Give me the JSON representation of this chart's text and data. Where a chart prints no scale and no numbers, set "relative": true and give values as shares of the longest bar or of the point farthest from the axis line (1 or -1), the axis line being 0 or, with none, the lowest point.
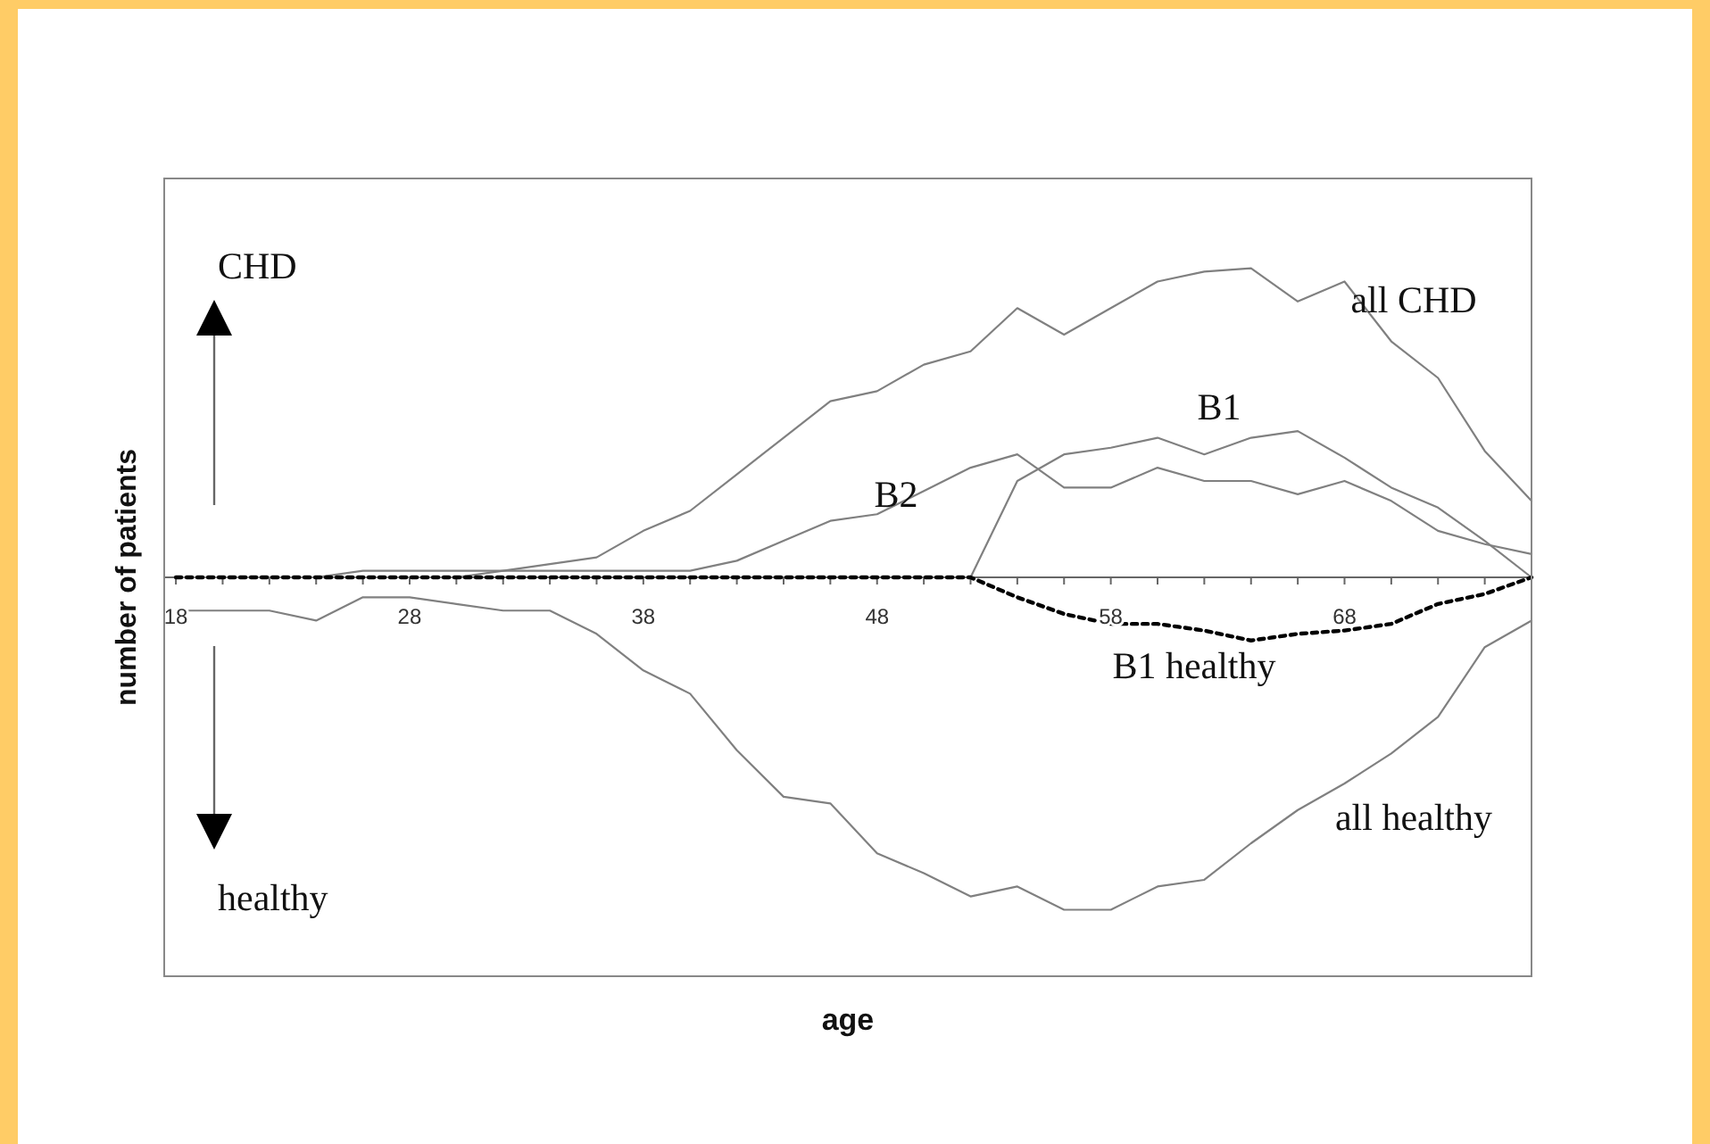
{
  "chart_data": {
    "type": "line",
    "relative": true,
    "xlabel": "age",
    "ylabel": "number of patients",
    "annotations": [
      "CHD",
      "healthy"
    ],
    "x": [
      18,
      20,
      22,
      24,
      26,
      28,
      30,
      32,
      34,
      36,
      38,
      40,
      42,
      44,
      46,
      48,
      50,
      52,
      54,
      56,
      58,
      60,
      62,
      64,
      66,
      68,
      70,
      72,
      74,
      76
    ],
    "xlim": [
      17.5,
      76
    ],
    "xticks": [
      18,
      {
        "value": 20,
        "label": null
      },
      {
        "value": 22,
        "label": null
      },
      {
        "value": 24,
        "label": null
      },
      {
        "value": 26,
        "label": null
      },
      28,
      {
        "value": 30,
        "label": null
      },
      {
        "value": 32,
        "label": null
      },
      {
        "value": 34,
        "label": null
      },
      {
        "value": 36,
        "label": null
      },
      38,
      {
        "value": 40,
        "label": null
      },
      {
        "value": 42,
        "label": null
      },
      {
        "value": 44,
        "label": null
      },
      {
        "value": 46,
        "label": null
      },
      48,
      {
        "value": 50,
        "label": null
      },
      {
        "value": 52,
        "label": null
      },
      {
        "value": 54,
        "label": null
      },
      {
        "value": 56,
        "label": null
      },
      58,
      {
        "value": 60,
        "label": null
      },
      {
        "value": 62,
        "label": null
      },
      {
        "value": 64,
        "label": null
      },
      {
        "value": 66,
        "label": null
      },
      68,
      {
        "value": 70,
        "label": null
      },
      {
        "value": 72,
        "label": null
      },
      {
        "value": 74,
        "label": null
      },
      {
        "value": 76,
        "label": null
      }
    ],
    "series": [
      {
        "name": "all CHD",
        "color": "#808080",
        "values": [
          0,
          0,
          0,
          0,
          0.02,
          0.02,
          0.02,
          0.02,
          0.04,
          0.06,
          0.14,
          0.2,
          0.31,
          0.42,
          0.53,
          0.56,
          0.64,
          0.68,
          0.81,
          0.73,
          0.81,
          0.89,
          0.92,
          0.93,
          0.83,
          0.89,
          0.71,
          0.6,
          0.38,
          0.23
        ]
      },
      {
        "name": "B1",
        "color": "#808080",
        "values": [
          null,
          null,
          null,
          null,
          null,
          null,
          null,
          null,
          null,
          null,
          null,
          null,
          null,
          null,
          null,
          null,
          null,
          0,
          0.29,
          0.37,
          0.39,
          0.42,
          0.37,
          0.42,
          0.44,
          0.36,
          0.27,
          0.21,
          0.11,
          0
        ]
      },
      {
        "name": "B2",
        "color": "#808080",
        "values": [
          0,
          0,
          0,
          0,
          0,
          0,
          0,
          0.02,
          0.02,
          0.02,
          0.02,
          0.02,
          0.05,
          0.11,
          0.17,
          0.19,
          0.26,
          0.33,
          0.37,
          0.27,
          0.27,
          0.33,
          0.29,
          0.29,
          0.25,
          0.29,
          0.23,
          0.14,
          0.1,
          0.07
        ]
      },
      {
        "name": "B1 healthy",
        "color": "#000000",
        "line_style": "dotted",
        "values": [
          0,
          0,
          0,
          0,
          0,
          0,
          0,
          0,
          0,
          0,
          0,
          0,
          0,
          0,
          0,
          0,
          0,
          0,
          -0.06,
          -0.11,
          -0.14,
          -0.14,
          -0.16,
          -0.19,
          -0.17,
          -0.16,
          -0.14,
          -0.08,
          -0.05,
          0
        ]
      },
      {
        "name": "all healthy",
        "color": "#808080",
        "values": [
          -0.1,
          -0.1,
          -0.1,
          -0.13,
          -0.06,
          -0.06,
          -0.08,
          -0.1,
          -0.1,
          -0.17,
          -0.28,
          -0.35,
          -0.52,
          -0.66,
          -0.68,
          -0.83,
          -0.89,
          -0.96,
          -0.93,
          -1,
          -1,
          -0.93,
          -0.91,
          -0.8,
          -0.7,
          -0.62,
          -0.53,
          -0.42,
          -0.21,
          -0.13
        ]
      }
    ]
  }
}
